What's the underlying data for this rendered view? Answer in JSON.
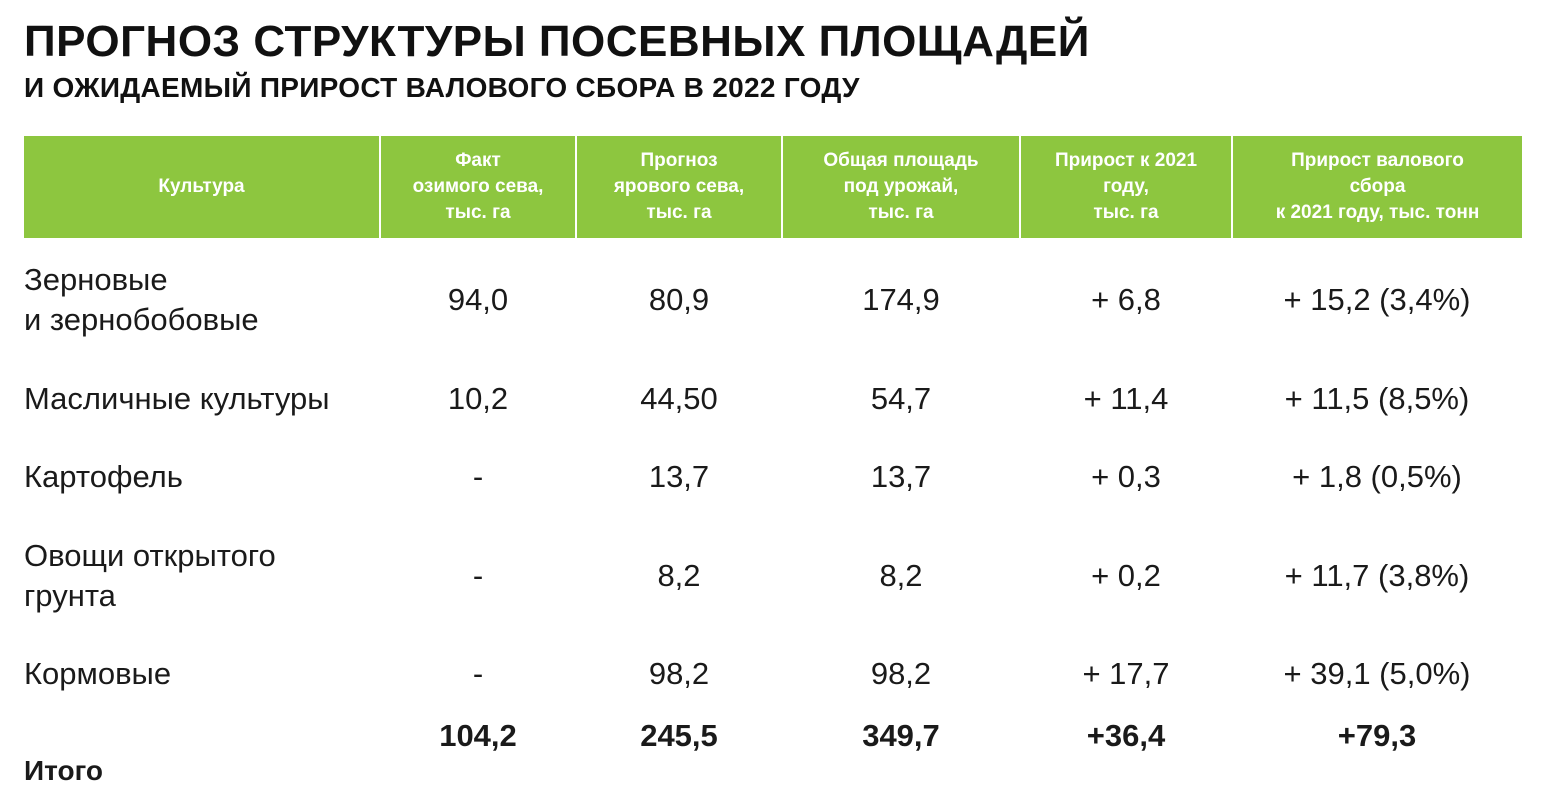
{
  "title": "ПРОГНОЗ СТРУКТУРЫ ПОСЕВНЫХ ПЛОЩАДЕЙ",
  "subtitle": "И ОЖИДАЕМЫЙ ПРИРОСТ ВАЛОВОГО СБОРА В 2022 ГОДУ",
  "colors": {
    "header_bg": "#8dc63f",
    "header_text": "#ffffff",
    "body_text": "#1a1a1a"
  },
  "table": {
    "headers": [
      "Культура",
      "Факт\nозимого сева,\nтыс. га",
      "Прогноз\nярового сева,\nтыс. га",
      "Общая площадь\nпод урожай,\nтыс. га",
      "Прирост к 2021\nгоду,\nтыс. га",
      "Прирост  валового\nсбора\nк 2021 году, тыс. тонн"
    ],
    "rows": [
      [
        "Зерновые\nи зернобобовые",
        "94,0",
        "80,9",
        "174,9",
        "+ 6,8",
        "+ 15,2 (3,4%)"
      ],
      [
        "Масличные культуры",
        "10,2",
        "44,50",
        "54,7",
        "+ 11,4",
        "+ 11,5 (8,5%)"
      ],
      [
        "Картофель",
        "-",
        "13,7",
        "13,7",
        "+ 0,3",
        "+ 1,8 (0,5%)"
      ],
      [
        "Овощи открытого\nгрунта",
        "-",
        "8,2",
        "8,2",
        "+ 0,2",
        "+ 11,7 (3,8%)"
      ],
      [
        "Кормовые",
        "-",
        "98,2",
        "98,2",
        "+ 17,7",
        "+ 39,1 (5,0%)"
      ]
    ],
    "total": [
      "Итого",
      "104,2",
      "245,5",
      "349,7",
      "+36,4",
      "+79,3"
    ]
  }
}
